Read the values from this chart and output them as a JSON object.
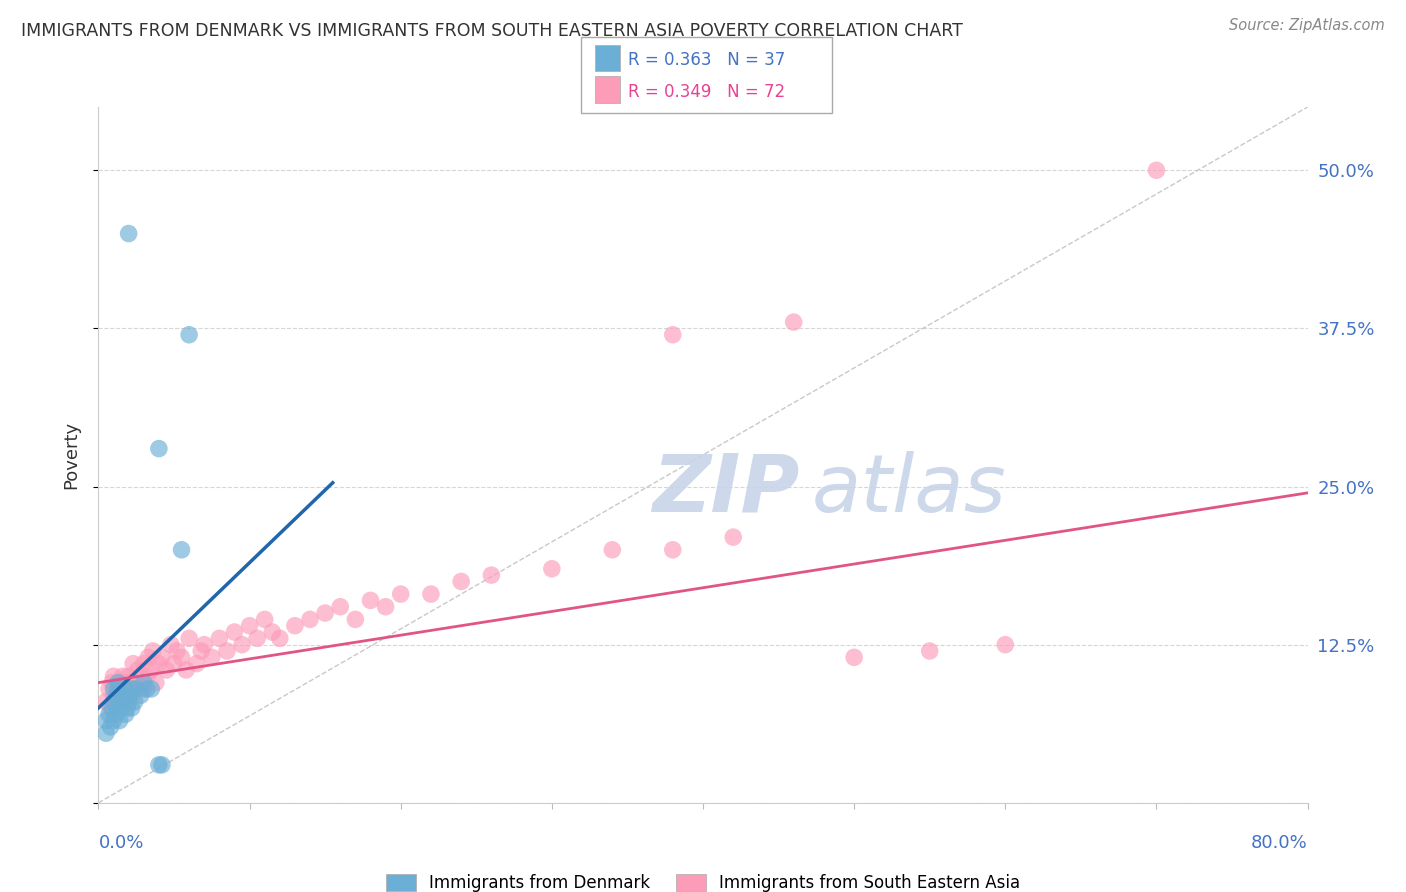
{
  "title": "IMMIGRANTS FROM DENMARK VS IMMIGRANTS FROM SOUTH EASTERN ASIA POVERTY CORRELATION CHART",
  "source": "Source: ZipAtlas.com",
  "ylabel": "Poverty",
  "xlim": [
    0.0,
    0.8
  ],
  "ylim": [
    0.0,
    0.55
  ],
  "ytick_values": [
    0.0,
    0.125,
    0.25,
    0.375,
    0.5
  ],
  "ytick_labels": [
    "",
    "12.5%",
    "25.0%",
    "37.5%",
    "50.0%"
  ],
  "legend_r1": "R = 0.363",
  "legend_n1": "N = 37",
  "legend_r2": "R = 0.349",
  "legend_n2": "N = 72",
  "color_denmark": "#6baed6",
  "color_sea": "#fc9cb9",
  "color_denmark_line": "#2166ac",
  "color_sea_line": "#e05585",
  "color_grid": "#cccccc",
  "color_axis_label": "#4472c4",
  "watermark_color": "#c8d4e8",
  "dk_line_x": [
    0.0,
    0.155
  ],
  "dk_line_y": [
    0.075,
    0.253
  ],
  "sea_line_x": [
    0.0,
    0.8
  ],
  "sea_line_y": [
    0.095,
    0.245
  ],
  "diag_line_x": [
    0.0,
    0.8
  ],
  "diag_line_y": [
    0.0,
    0.55
  ],
  "dk_x": [
    0.005,
    0.005,
    0.007,
    0.008,
    0.009,
    0.01,
    0.01,
    0.01,
    0.012,
    0.012,
    0.013,
    0.013,
    0.013,
    0.014,
    0.015,
    0.015,
    0.016,
    0.017,
    0.018,
    0.018,
    0.019,
    0.02,
    0.021,
    0.022,
    0.022,
    0.024,
    0.025,
    0.028,
    0.03,
    0.032,
    0.035,
    0.04,
    0.042,
    0.055,
    0.06,
    0.04,
    0.02
  ],
  "dk_y": [
    0.055,
    0.065,
    0.07,
    0.06,
    0.075,
    0.065,
    0.08,
    0.09,
    0.07,
    0.085,
    0.075,
    0.09,
    0.095,
    0.065,
    0.08,
    0.075,
    0.08,
    0.085,
    0.07,
    0.09,
    0.075,
    0.08,
    0.085,
    0.075,
    0.09,
    0.08,
    0.09,
    0.085,
    0.095,
    0.09,
    0.09,
    0.03,
    0.03,
    0.2,
    0.37,
    0.28,
    0.45
  ],
  "sea_x": [
    0.005,
    0.007,
    0.008,
    0.009,
    0.01,
    0.01,
    0.012,
    0.013,
    0.014,
    0.015,
    0.016,
    0.017,
    0.018,
    0.019,
    0.02,
    0.021,
    0.022,
    0.023,
    0.025,
    0.026,
    0.027,
    0.028,
    0.03,
    0.03,
    0.032,
    0.033,
    0.035,
    0.036,
    0.038,
    0.04,
    0.042,
    0.045,
    0.048,
    0.05,
    0.052,
    0.055,
    0.058,
    0.06,
    0.065,
    0.068,
    0.07,
    0.075,
    0.08,
    0.085,
    0.09,
    0.095,
    0.1,
    0.105,
    0.11,
    0.115,
    0.12,
    0.13,
    0.14,
    0.15,
    0.16,
    0.17,
    0.18,
    0.19,
    0.2,
    0.22,
    0.24,
    0.26,
    0.3,
    0.34,
    0.38,
    0.42,
    0.46,
    0.5,
    0.55,
    0.6,
    0.7,
    0.38
  ],
  "sea_y": [
    0.08,
    0.09,
    0.075,
    0.095,
    0.085,
    0.1,
    0.09,
    0.08,
    0.095,
    0.085,
    0.1,
    0.09,
    0.08,
    0.095,
    0.1,
    0.085,
    0.095,
    0.11,
    0.095,
    0.105,
    0.09,
    0.1,
    0.11,
    0.09,
    0.1,
    0.115,
    0.105,
    0.12,
    0.095,
    0.11,
    0.115,
    0.105,
    0.125,
    0.11,
    0.12,
    0.115,
    0.105,
    0.13,
    0.11,
    0.12,
    0.125,
    0.115,
    0.13,
    0.12,
    0.135,
    0.125,
    0.14,
    0.13,
    0.145,
    0.135,
    0.13,
    0.14,
    0.145,
    0.15,
    0.155,
    0.145,
    0.16,
    0.155,
    0.165,
    0.165,
    0.175,
    0.18,
    0.185,
    0.2,
    0.2,
    0.21,
    0.38,
    0.115,
    0.12,
    0.125,
    0.5,
    0.37
  ]
}
